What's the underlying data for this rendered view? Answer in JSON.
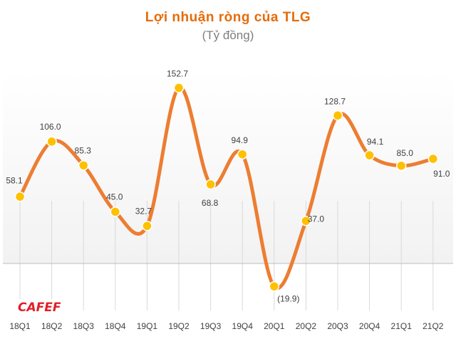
{
  "colors": {
    "line": "#ED7D31",
    "marker": "#FFC000",
    "title": "#E46C0A",
    "subtitle": "#7F7F7F",
    "text": "#404040",
    "grid": "#D9D9D9",
    "band": "#F2F2F2",
    "logo_red": "#E11E26",
    "logo_stripe": "#E11E26"
  },
  "logo": {
    "text": "CAFEF"
  },
  "chart_data": {
    "type": "line",
    "title": "Lợi nhuận ròng của TLG",
    "subtitle": "(Tỷ đồng)",
    "categories": [
      "18Q1",
      "18Q2",
      "18Q3",
      "18Q4",
      "19Q1",
      "19Q2",
      "19Q3",
      "19Q4",
      "20Q1",
      "20Q2",
      "20Q3",
      "20Q4",
      "21Q1",
      "21Q2"
    ],
    "series": [
      {
        "values": [
          58.1,
          106.0,
          85.3,
          45.0,
          32.7,
          152.7,
          68.8,
          94.9,
          -19.9,
          37.0,
          128.7,
          94.1,
          85.0,
          91.0
        ]
      }
    ],
    "data_labels": [
      "58.1",
      "106.0",
      "85.3",
      "45.0",
      "32.7",
      "152.7",
      "68.8",
      "94.9",
      "(19.9)",
      "37.0",
      "128.7",
      "94.1",
      "85.0",
      "91.0"
    ],
    "ylim": [
      -30,
      160
    ],
    "grid": "vertical",
    "smooth": true,
    "markers": true
  }
}
